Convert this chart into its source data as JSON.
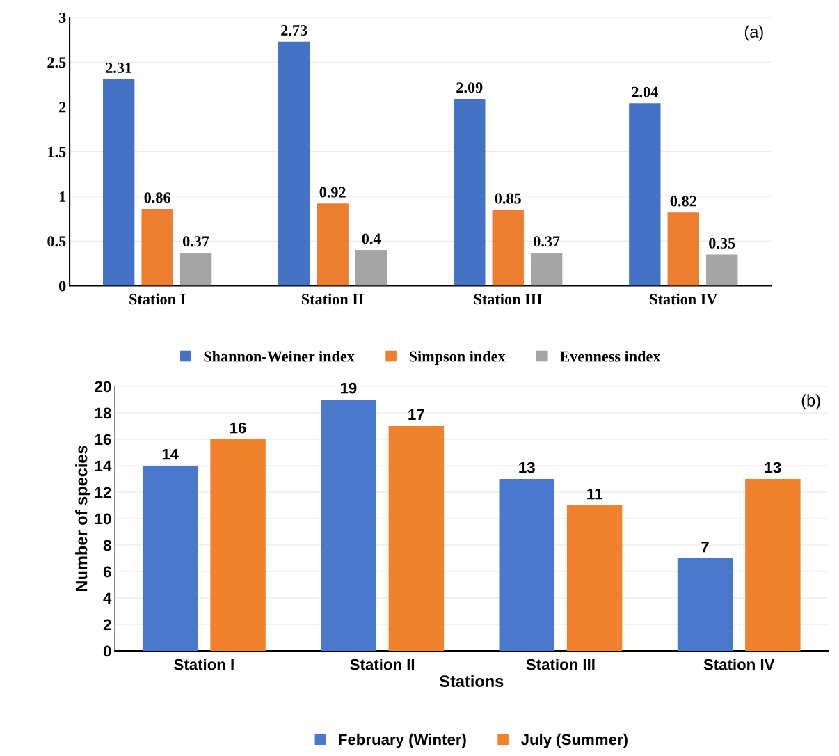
{
  "chart_data": [
    {
      "type": "bar",
      "categories": [
        "Station I",
        "Station II",
        "Station III",
        "Station IV"
      ],
      "series": [
        {
          "name": "Shannon-Weiner index",
          "color": "#4472c4",
          "values": [
            2.31,
            2.73,
            2.09,
            2.04
          ]
        },
        {
          "name": "Simpson index",
          "color": "#ed7d31",
          "values": [
            0.86,
            0.92,
            0.85,
            0.82
          ]
        },
        {
          "name": "Evenness index",
          "color": "#a5a5a5",
          "values": [
            0.37,
            0.4,
            0.37,
            0.35
          ]
        }
      ],
      "ylim": [
        0,
        3
      ],
      "yticks": [
        0,
        0.5,
        1,
        1.5,
        2,
        2.5,
        3
      ],
      "grid": "y",
      "legend": "bottom",
      "data_labels": true,
      "annotations": [
        "(a)"
      ]
    },
    {
      "type": "bar",
      "categories": [
        "Station I",
        "Station II",
        "Station III",
        "Station IV"
      ],
      "series": [
        {
          "name": "February (Winter)",
          "color": "#4a78cc",
          "values": [
            14,
            19,
            13,
            7
          ]
        },
        {
          "name": "July (Summer)",
          "color": "#f0822e",
          "values": [
            16,
            17,
            11,
            13
          ]
        }
      ],
      "ylim": [
        0,
        20
      ],
      "yticks": [
        0,
        2,
        4,
        6,
        8,
        10,
        12,
        14,
        16,
        18,
        20
      ],
      "grid": "y",
      "legend": "bottom",
      "data_labels": true,
      "xlabel": "Stations",
      "ylabel": "Number of species",
      "annotations": [
        "(b)"
      ]
    }
  ]
}
